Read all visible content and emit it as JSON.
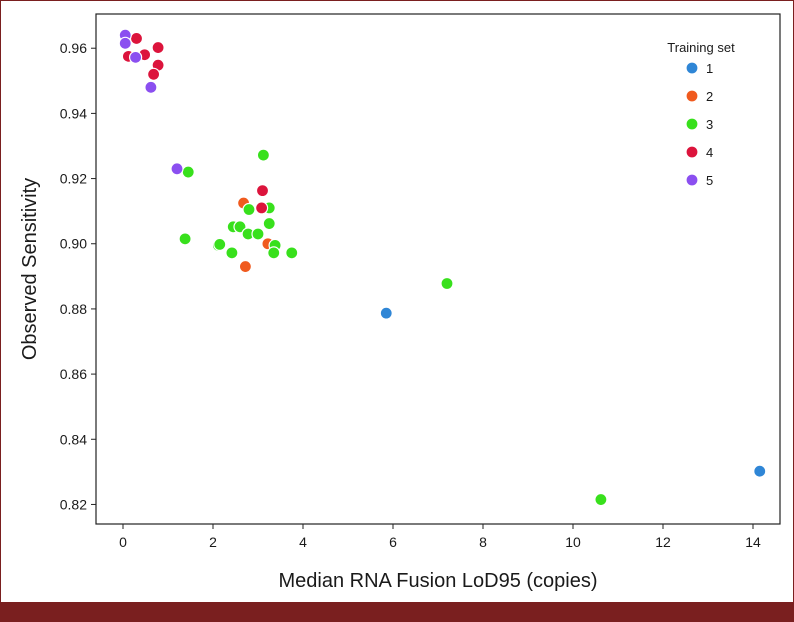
{
  "chart_data": {
    "type": "scatter",
    "xlabel": "Median RNA Fusion LoD95 (copies)",
    "ylabel": "Observed Sensitivity",
    "xlim": [
      -0.6,
      14.6
    ],
    "ylim": [
      0.814,
      0.9705
    ],
    "x_ticks": [
      0,
      2,
      4,
      6,
      8,
      10,
      12,
      14
    ],
    "y_ticks": [
      0.82,
      0.84,
      0.86,
      0.88,
      0.9,
      0.92,
      0.94,
      0.96
    ],
    "x_tick_labels": [
      "0",
      "2",
      "4",
      "6",
      "8",
      "10",
      "12",
      "14"
    ],
    "y_tick_labels": [
      "0.82",
      "0.84",
      "0.86",
      "0.88",
      "0.90",
      "0.92",
      "0.94",
      "0.96"
    ],
    "grid": false,
    "legend": {
      "title": "Training set",
      "placement": "top-right"
    },
    "series": [
      {
        "name": "1",
        "color": "#2f86d6",
        "points": [
          [
            5.85,
            0.8787
          ],
          [
            14.15,
            0.8302
          ]
        ]
      },
      {
        "name": "2",
        "color": "#f05a1e",
        "points": [
          [
            2.68,
            0.9125
          ],
          [
            3.08,
            0.911
          ],
          [
            3.22,
            0.9
          ],
          [
            2.72,
            0.893
          ]
        ]
      },
      {
        "name": "3",
        "color": "#38e01c",
        "points": [
          [
            1.45,
            0.922
          ],
          [
            3.12,
            0.9272
          ],
          [
            1.38,
            0.9015
          ],
          [
            2.12,
            0.8995
          ],
          [
            2.15,
            0.8998
          ],
          [
            2.45,
            0.9052
          ],
          [
            2.6,
            0.9052
          ],
          [
            2.8,
            0.9105
          ],
          [
            3.25,
            0.911
          ],
          [
            3.25,
            0.9062
          ],
          [
            2.78,
            0.903
          ],
          [
            3.0,
            0.903
          ],
          [
            2.42,
            0.8972
          ],
          [
            3.38,
            0.8995
          ],
          [
            3.35,
            0.8972
          ],
          [
            3.75,
            0.8972
          ],
          [
            7.2,
            0.8878
          ],
          [
            10.62,
            0.8215
          ]
        ]
      },
      {
        "name": "4",
        "color": "#dc143c",
        "points": [
          [
            0.3,
            0.963
          ],
          [
            0.78,
            0.9602
          ],
          [
            0.12,
            0.9575
          ],
          [
            0.48,
            0.958
          ],
          [
            0.78,
            0.9548
          ],
          [
            0.68,
            0.952
          ],
          [
            3.1,
            0.9163
          ],
          [
            3.08,
            0.911
          ]
        ]
      },
      {
        "name": "5",
        "color": "#8b4ff0",
        "points": [
          [
            0.05,
            0.964
          ],
          [
            0.05,
            0.9615
          ],
          [
            0.28,
            0.9572
          ],
          [
            0.62,
            0.948
          ],
          [
            1.2,
            0.923
          ]
        ]
      }
    ]
  }
}
